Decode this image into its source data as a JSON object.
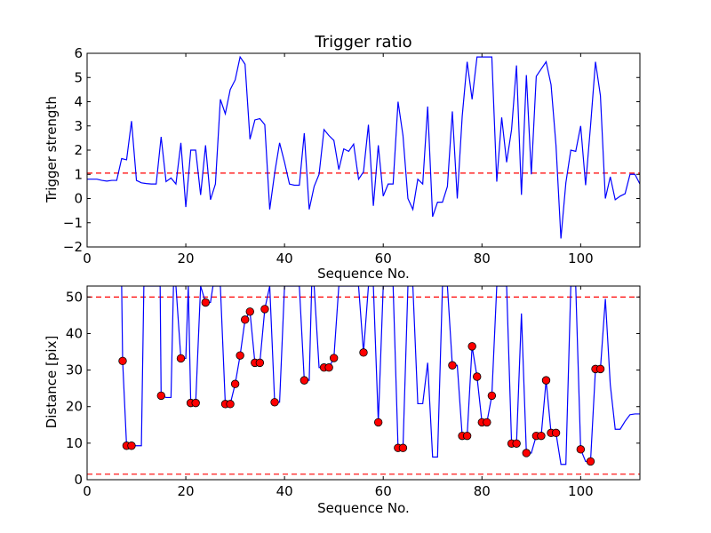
{
  "chart_data": [
    {
      "type": "line",
      "title": "Trigger ratio",
      "xlabel": "Sequence No.",
      "ylabel": "Trigger strength",
      "xlim": [
        0,
        112
      ],
      "ylim": [
        -2,
        6
      ],
      "xticks": [
        0,
        20,
        40,
        60,
        80,
        100
      ],
      "yticks": [
        -2,
        -1,
        0,
        1,
        2,
        3,
        4,
        5,
        6
      ],
      "xtick_labels": [
        "0",
        "20",
        "40",
        "60",
        "80",
        "100"
      ],
      "ytick_labels": [
        "−2",
        "−1",
        "0",
        "1",
        "2",
        "3",
        "4",
        "5",
        "6"
      ],
      "grid": false,
      "line_color": "#0000ff",
      "reference_lines": [
        {
          "y": 1.05,
          "style": "dashed",
          "color": "#ff0000"
        }
      ],
      "series": [
        {
          "x": [
            0,
            1,
            2,
            3,
            4,
            5,
            6,
            7,
            8,
            9,
            10,
            11,
            12,
            13,
            14,
            15,
            16,
            17,
            18,
            19,
            20,
            21,
            22,
            23,
            24,
            25,
            26,
            27,
            28,
            29,
            30,
            31,
            32,
            33,
            34,
            35,
            36,
            37,
            38,
            39,
            40,
            41,
            42,
            43,
            44,
            45,
            46,
            47,
            48,
            49,
            50,
            51,
            52,
            53,
            54,
            55,
            56,
            57,
            58,
            59,
            60,
            61,
            62,
            63,
            64,
            65,
            66,
            67,
            68,
            69,
            70,
            71,
            72,
            73,
            74,
            75,
            76,
            77,
            78,
            79,
            80,
            81,
            82,
            83,
            84,
            85,
            86,
            87,
            88,
            89,
            90,
            91,
            92,
            93,
            94,
            95,
            96,
            97,
            98,
            99,
            100,
            101,
            102,
            103,
            104,
            105,
            106,
            107,
            108,
            109,
            110,
            111,
            112
          ],
          "values": [
            0.8,
            0.8,
            0.8,
            0.75,
            0.72,
            0.75,
            0.75,
            1.65,
            1.6,
            3.2,
            0.75,
            0.65,
            0.62,
            0.6,
            0.6,
            2.55,
            0.7,
            0.85,
            0.6,
            2.3,
            -0.35,
            2.0,
            2.0,
            0.15,
            2.2,
            -0.05,
            0.6,
            4.1,
            3.5,
            4.5,
            4.9,
            5.85,
            5.55,
            2.45,
            3.25,
            3.3,
            3.05,
            -0.45,
            1.05,
            2.3,
            1.5,
            0.6,
            0.55,
            0.55,
            2.7,
            -0.45,
            0.5,
            1.0,
            2.85,
            2.6,
            2.4,
            1.2,
            2.05,
            1.95,
            2.25,
            0.8,
            1.1,
            3.05,
            -0.3,
            2.2,
            0.1,
            0.6,
            0.6,
            4.0,
            2.6,
            0.0,
            -0.45,
            0.8,
            0.6,
            3.8,
            -0.75,
            -0.15,
            -0.15,
            0.5,
            3.6,
            0.0,
            3.4,
            5.65,
            4.1,
            5.85,
            5.85,
            5.85,
            5.85,
            0.7,
            3.35,
            1.5,
            2.85,
            5.5,
            0.15,
            5.1,
            1.0,
            5.05,
            5.35,
            5.65,
            4.7,
            2.2,
            -1.65,
            0.65,
            2.0,
            1.95,
            3.0,
            0.55,
            3.0,
            5.65,
            4.25,
            0.0,
            0.9,
            -0.05,
            0.1,
            0.2,
            1.0,
            1.0,
            0.6
          ]
        }
      ]
    },
    {
      "type": "line",
      "title": "",
      "xlabel": "Sequence No.",
      "ylabel": "Distance [pix]",
      "xlim": [
        0,
        112
      ],
      "ylim": [
        0,
        53
      ],
      "xticks": [
        0,
        20,
        40,
        60,
        80,
        100
      ],
      "yticks": [
        0,
        10,
        20,
        30,
        40,
        50
      ],
      "xtick_labels": [
        "0",
        "20",
        "40",
        "60",
        "80",
        "100"
      ],
      "ytick_labels": [
        "0",
        "10",
        "20",
        "30",
        "40",
        "50"
      ],
      "grid": false,
      "line_color": "#0000ff",
      "marker_color": "#ff0000",
      "reference_lines": [
        {
          "y": 50,
          "style": "dashed",
          "color": "#ff0000"
        },
        {
          "y": 1.5,
          "style": "dashed",
          "color": "#ff0000"
        }
      ],
      "series": [
        {
          "name": "",
          "x": [
            7,
            7.2,
            8,
            9,
            10,
            11,
            11.5,
            12,
            13,
            14,
            14.8,
            15,
            16,
            17,
            17.5,
            18,
            19,
            20,
            20.5,
            21,
            22,
            23,
            24,
            25,
            25.5,
            26,
            27,
            28,
            29,
            30,
            31,
            32,
            33,
            34,
            35,
            36,
            37,
            38,
            39,
            40,
            41,
            42,
            43,
            44,
            45,
            45.5,
            46,
            47,
            48,
            49,
            50,
            51,
            52,
            53,
            54,
            55,
            56,
            57,
            58,
            59,
            60,
            61,
            62,
            63,
            64,
            65,
            66,
            67,
            68,
            69,
            70,
            71,
            72,
            73,
            74,
            75,
            76,
            77,
            78,
            79,
            80,
            81,
            82,
            83,
            84,
            85,
            86,
            87,
            88,
            89,
            90,
            91,
            92,
            93,
            94,
            95,
            96,
            97,
            98,
            99,
            100,
            101,
            102,
            103,
            104,
            105,
            106,
            107,
            108,
            109,
            110,
            111,
            112
          ],
          "values": [
            53,
            32.5,
            9.3,
            9.3,
            9.3,
            9.3,
            53,
            53,
            53,
            53,
            53,
            23.0,
            22.5,
            22.5,
            53,
            53,
            33.2,
            33.2,
            53,
            21.0,
            21.0,
            53,
            48.5,
            48.5,
            53,
            53,
            53,
            20.7,
            20.7,
            26.2,
            34.0,
            43.8,
            46.0,
            32.0,
            32.0,
            46.7,
            53,
            21.2,
            21.2,
            53,
            53,
            53,
            53,
            27.2,
            27.2,
            53,
            53,
            30.7,
            30.7,
            30.7,
            33.3,
            53,
            53,
            53,
            53,
            53,
            34.8,
            53,
            53,
            15.7,
            53,
            53,
            53,
            8.7,
            8.7,
            53,
            53,
            20.8,
            20.8,
            32.0,
            6.2,
            6.2,
            53,
            53,
            31.3,
            31.3,
            12.0,
            12.0,
            36.5,
            28.2,
            15.7,
            15.7,
            23.0,
            53,
            53,
            53,
            9.9,
            9.9,
            45.5,
            7.3,
            7.3,
            12.0,
            12.0,
            27.2,
            12.8,
            12.8,
            4.2,
            4.2,
            53,
            53,
            8.3,
            5.0,
            5.0,
            30.3,
            30.3,
            49.5,
            26.0,
            13.8,
            13.8,
            16.0,
            17.8,
            18.0,
            18.0
          ]
        }
      ],
      "markers": {
        "x": [
          7.2,
          8,
          9,
          15,
          19,
          21,
          22,
          24,
          28,
          29,
          30,
          31,
          32,
          33,
          34,
          35,
          36,
          38,
          44,
          48,
          49,
          50,
          56,
          59,
          63,
          64,
          74,
          76,
          77,
          78,
          79,
          80,
          81,
          82,
          86,
          87,
          89,
          91,
          92,
          93,
          94,
          95,
          100,
          102,
          103,
          104
        ],
        "values": [
          32.5,
          9.3,
          9.3,
          23.0,
          33.2,
          21.0,
          21.0,
          48.5,
          20.7,
          20.7,
          26.2,
          34.0,
          43.8,
          46.0,
          32.0,
          32.0,
          46.7,
          21.2,
          27.2,
          30.7,
          30.7,
          33.3,
          34.8,
          15.7,
          8.7,
          8.7,
          31.3,
          12.0,
          12.0,
          36.5,
          28.2,
          15.7,
          15.7,
          23.0,
          9.9,
          9.9,
          7.3,
          12.0,
          12.0,
          27.2,
          12.8,
          12.8,
          8.3,
          5.0,
          30.3,
          30.3
        ]
      }
    }
  ]
}
